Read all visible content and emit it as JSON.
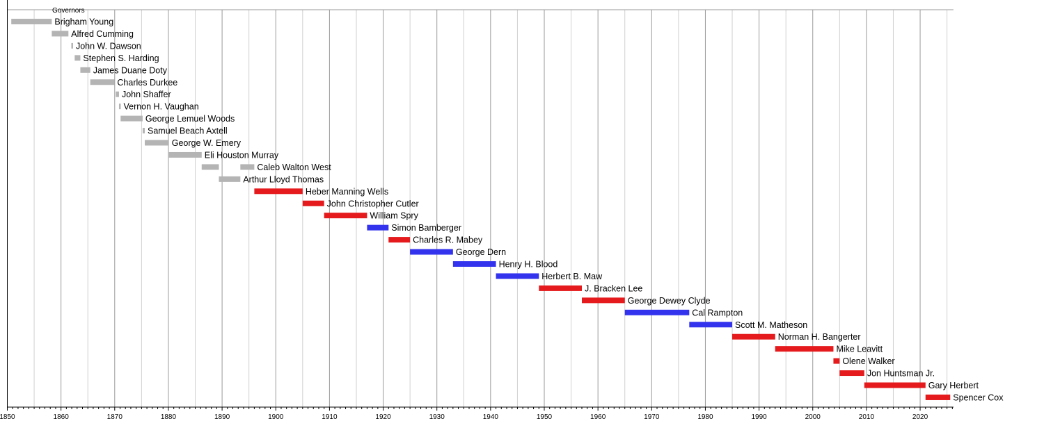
{
  "chart_data": {
    "type": "timeline",
    "title": "Governors",
    "xlim": [
      1850,
      2026.2
    ],
    "x_ticks": [
      1850,
      1860,
      1870,
      1880,
      1890,
      1900,
      1910,
      1920,
      1930,
      1940,
      1950,
      1960,
      1970,
      1980,
      1990,
      2000,
      2010,
      2020
    ],
    "grid": {
      "major_every": 10,
      "minor_every": 5,
      "minor_ticks_every": 1
    },
    "colors": {
      "territorial": "#b4b4b4",
      "republican": "#e41a1c",
      "democrat": "#3333ee"
    },
    "rows": [
      {
        "name": "Brigham Young",
        "party": "territorial",
        "terms": [
          [
            1850.74,
            1858.28
          ]
        ]
      },
      {
        "name": "Alfred Cumming",
        "party": "territorial",
        "terms": [
          [
            1858.28,
            1861.38
          ]
        ]
      },
      {
        "name": "John W. Dawson",
        "party": "territorial",
        "terms": [
          [
            1861.92,
            1862.0
          ]
        ]
      },
      {
        "name": "Stephen S. Harding",
        "party": "territorial",
        "terms": [
          [
            1862.55,
            1863.6
          ]
        ]
      },
      {
        "name": "James Duane Doty",
        "party": "territorial",
        "terms": [
          [
            1863.6,
            1865.45
          ]
        ]
      },
      {
        "name": "Charles Durkee",
        "party": "territorial",
        "terms": [
          [
            1865.45,
            1869.95
          ]
        ]
      },
      {
        "name": "John Shaffer",
        "party": "territorial",
        "terms": [
          [
            1870.2,
            1870.8
          ]
        ]
      },
      {
        "name": "Vernon H. Vaughan",
        "party": "territorial",
        "terms": [
          [
            1870.8,
            1871.1
          ]
        ]
      },
      {
        "name": "George Lemuel Woods",
        "party": "territorial",
        "terms": [
          [
            1871.1,
            1875.2
          ]
        ]
      },
      {
        "name": "Samuel Beach Axtell",
        "party": "territorial",
        "terms": [
          [
            1875.2,
            1875.6
          ]
        ]
      },
      {
        "name": "George W. Emery",
        "party": "territorial",
        "terms": [
          [
            1875.6,
            1880.1
          ]
        ]
      },
      {
        "name": "Eli Houston Murray",
        "party": "territorial",
        "terms": [
          [
            1880.1,
            1886.2
          ]
        ]
      },
      {
        "name": "Caleb Walton West",
        "party": "territorial",
        "terms": [
          [
            1886.2,
            1889.4
          ],
          [
            1893.4,
            1896.0
          ]
        ]
      },
      {
        "name": "Arthur Lloyd Thomas",
        "party": "territorial",
        "terms": [
          [
            1889.4,
            1893.4
          ]
        ]
      },
      {
        "name": "Heber Manning Wells",
        "party": "republican",
        "terms": [
          [
            1896.0,
            1905.0
          ]
        ]
      },
      {
        "name": "John Christopher Cutler",
        "party": "republican",
        "terms": [
          [
            1905.0,
            1909.0
          ]
        ]
      },
      {
        "name": "William Spry",
        "party": "republican",
        "terms": [
          [
            1909.0,
            1917.0
          ]
        ]
      },
      {
        "name": "Simon Bamberger",
        "party": "democrat",
        "terms": [
          [
            1917.0,
            1921.0
          ]
        ]
      },
      {
        "name": "Charles R. Mabey",
        "party": "republican",
        "terms": [
          [
            1921.0,
            1925.0
          ]
        ]
      },
      {
        "name": "George Dern",
        "party": "democrat",
        "terms": [
          [
            1925.0,
            1933.0
          ]
        ]
      },
      {
        "name": "Henry H. Blood",
        "party": "democrat",
        "terms": [
          [
            1933.0,
            1941.0
          ]
        ]
      },
      {
        "name": "Herbert B. Maw",
        "party": "democrat",
        "terms": [
          [
            1941.0,
            1949.0
          ]
        ]
      },
      {
        "name": "J. Bracken Lee",
        "party": "republican",
        "terms": [
          [
            1949.0,
            1957.0
          ]
        ]
      },
      {
        "name": "George Dewey Clyde",
        "party": "republican",
        "terms": [
          [
            1957.0,
            1965.0
          ]
        ]
      },
      {
        "name": "Cal Rampton",
        "party": "democrat",
        "terms": [
          [
            1965.0,
            1977.0
          ]
        ]
      },
      {
        "name": "Scott M. Matheson",
        "party": "democrat",
        "terms": [
          [
            1977.0,
            1985.0
          ]
        ]
      },
      {
        "name": "Norman H. Bangerter",
        "party": "republican",
        "terms": [
          [
            1985.0,
            1993.0
          ]
        ]
      },
      {
        "name": "Mike Leavitt",
        "party": "republican",
        "terms": [
          [
            1993.0,
            2003.85
          ]
        ]
      },
      {
        "name": "Olene Walker",
        "party": "republican",
        "terms": [
          [
            2003.85,
            2005.0
          ]
        ]
      },
      {
        "name": "Jon Huntsman Jr.",
        "party": "republican",
        "terms": [
          [
            2005.0,
            2009.6
          ]
        ]
      },
      {
        "name": "Gary Herbert",
        "party": "republican",
        "terms": [
          [
            2009.6,
            2021.0
          ]
        ]
      },
      {
        "name": "Spencer Cox",
        "party": "republican",
        "terms": [
          [
            2021.0,
            2025.6
          ]
        ]
      }
    ]
  }
}
